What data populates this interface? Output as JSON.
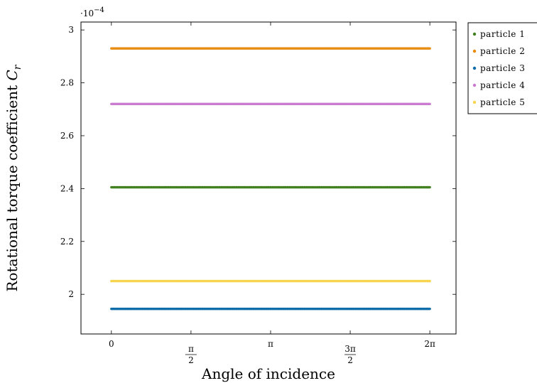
{
  "chart_data": {
    "type": "scatter",
    "title": "",
    "xlabel": "Angle of incidence",
    "ylabel_text": "Rotational torque coefficient ",
    "ylabel_symbol": "C",
    "ylabel_subscript": "r",
    "y_multiplier": {
      "base": "·10",
      "exponent": "−4"
    },
    "xlim": [
      -0.6,
      6.8
    ],
    "ylim": [
      1.85,
      3.03
    ],
    "x_range": [
      0,
      6.283185
    ],
    "x_ticks": [
      {
        "value": 0,
        "label": "0",
        "type": "plain"
      },
      {
        "value": 1.570796,
        "num": "π",
        "den": "2",
        "type": "frac"
      },
      {
        "value": 3.141593,
        "label": "π",
        "type": "plain"
      },
      {
        "value": 4.712389,
        "num": "3π",
        "den": "2",
        "type": "frac"
      },
      {
        "value": 6.283185,
        "label": "2π",
        "type": "plain"
      }
    ],
    "y_ticks": [
      {
        "value": 2.0,
        "label": "2"
      },
      {
        "value": 2.2,
        "label": "2.2"
      },
      {
        "value": 2.4,
        "label": "2.4"
      },
      {
        "value": 2.6,
        "label": "2.6"
      },
      {
        "value": 2.8,
        "label": "2.8"
      },
      {
        "value": 3.0,
        "label": "3"
      }
    ],
    "grid": false,
    "legend_position": "outside-top-right",
    "series": [
      {
        "name": "particle 1",
        "color": "#3e7e1c",
        "y": 2.405
      },
      {
        "name": "particle 2",
        "color": "#e8890c",
        "y": 2.93
      },
      {
        "name": "particle 3",
        "color": "#0b6aa8",
        "y": 1.945
      },
      {
        "name": "particle 4",
        "color": "#c979cf",
        "y": 2.72
      },
      {
        "name": "particle 5",
        "color": "#f8d34c",
        "y": 2.05
      }
    ]
  }
}
